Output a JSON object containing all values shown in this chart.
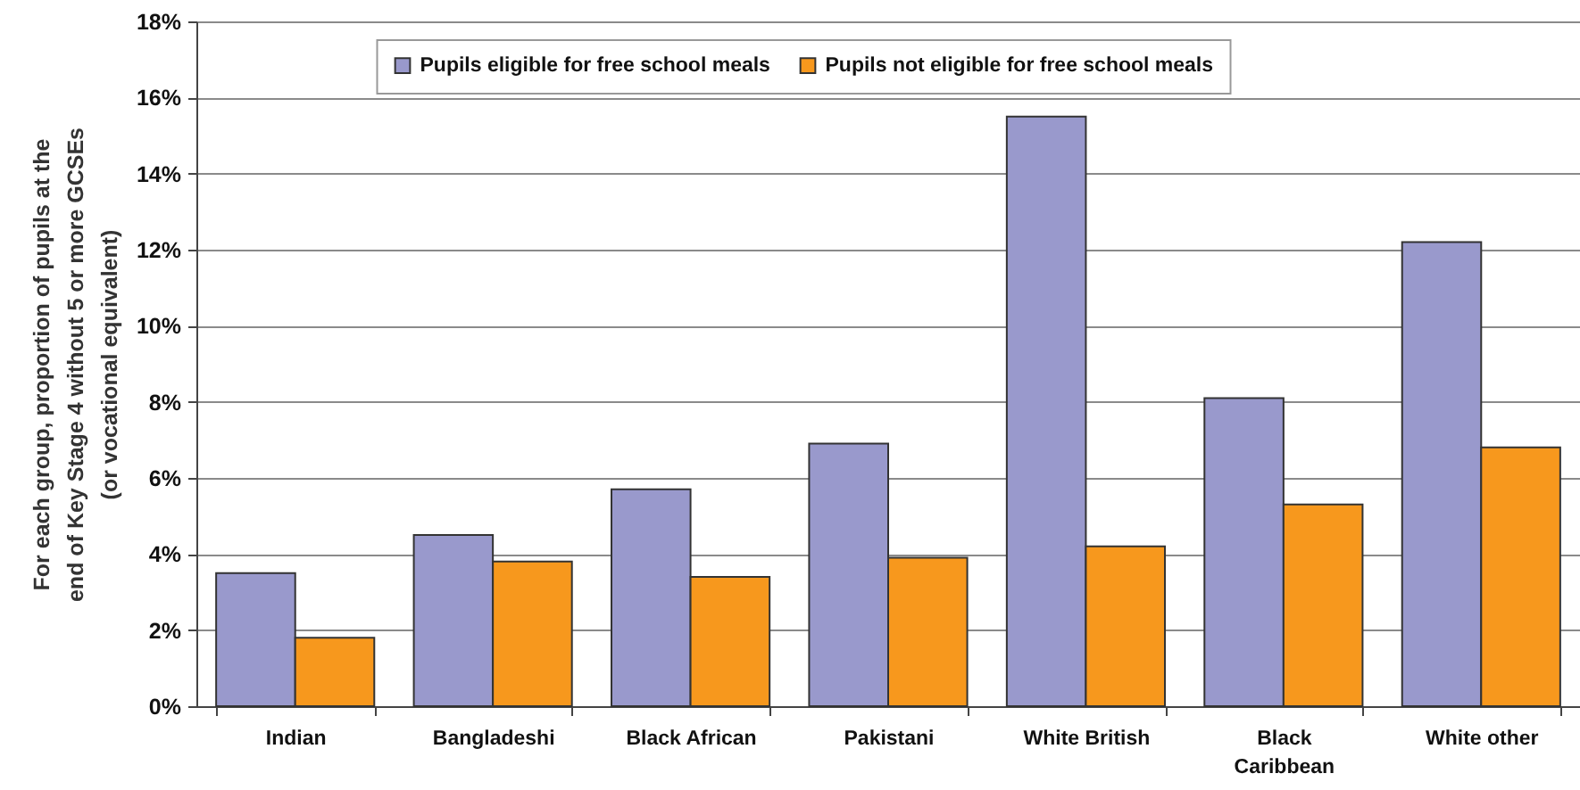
{
  "chart_data": {
    "type": "bar",
    "ylabel": "For each group, proportion of pupils at the end of Key Stage 4 without 5 or more GCSEs (or vocational equivalent)",
    "categories": [
      "Indian",
      "Bangladeshi",
      "Black African",
      "Pakistani",
      "White British",
      "Black Caribbean",
      "White other"
    ],
    "series": [
      {
        "name": "Pupils eligible for free school meals",
        "color": "#9999cc",
        "values": [
          3.5,
          4.5,
          5.7,
          6.9,
          15.5,
          8.1,
          12.2
        ]
      },
      {
        "name": "Pupils not eligible for free school meals",
        "color": "#f7981d",
        "values": [
          1.8,
          3.8,
          3.4,
          3.9,
          4.2,
          5.3,
          6.8
        ]
      }
    ],
    "ylim": [
      0,
      18
    ],
    "yticks": [
      {
        "value": 0,
        "label": "0%"
      },
      {
        "value": 2,
        "label": "2%"
      },
      {
        "value": 4,
        "label": "4%"
      },
      {
        "value": 6,
        "label": "6%"
      },
      {
        "value": 8,
        "label": "8%"
      },
      {
        "value": 10,
        "label": "10%"
      },
      {
        "value": 12,
        "label": "12%"
      },
      {
        "value": 14,
        "label": "14%"
      },
      {
        "value": 16,
        "label": "16%"
      },
      {
        "value": 18,
        "label": "18%"
      }
    ],
    "grid": "y",
    "legend": "top"
  }
}
